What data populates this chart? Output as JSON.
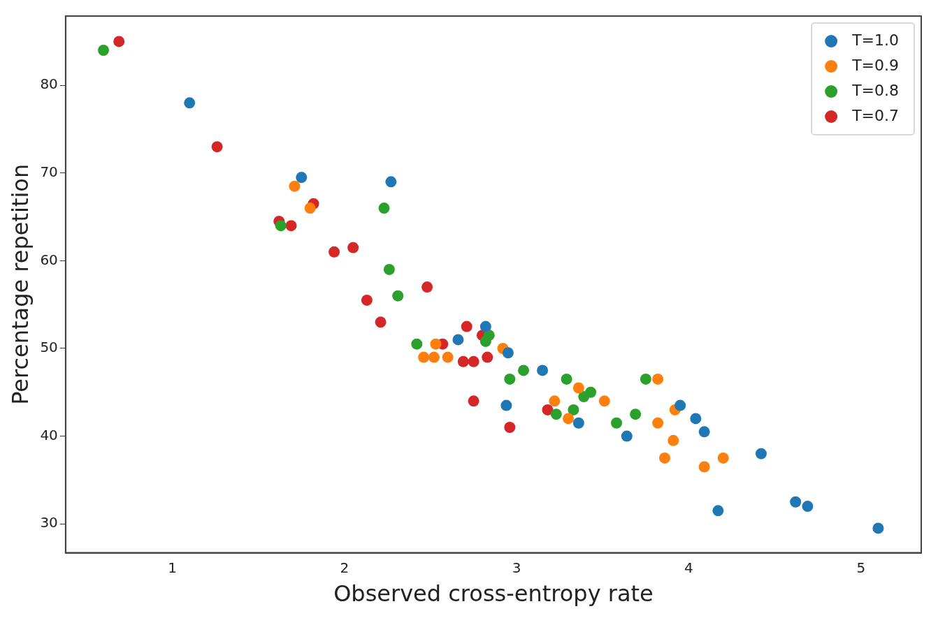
{
  "chart_data": {
    "type": "scatter",
    "xlabel": "Observed cross-entropy rate",
    "ylabel": "Percentage repetition",
    "xlim": [
      0.38,
      5.35
    ],
    "ylim": [
      26.7,
      87.9
    ],
    "xticks": [
      1,
      2,
      3,
      4,
      5
    ],
    "yticks": [
      30,
      40,
      50,
      60,
      70,
      80
    ],
    "grid": false,
    "legend": "top right",
    "marker": "circle",
    "series": [
      {
        "name": "T=1.0",
        "color": "#1f77b4",
        "x": [
          1.1,
          1.75,
          2.27,
          2.66,
          2.82,
          2.95,
          2.94,
          3.15,
          3.36,
          3.64,
          3.95,
          4.04,
          4.09,
          4.17,
          4.42,
          4.62,
          4.69,
          5.1
        ],
        "values": [
          78.0,
          69.5,
          69.0,
          51.0,
          52.5,
          49.5,
          43.5,
          47.5,
          41.5,
          40.0,
          43.5,
          42.0,
          40.5,
          31.5,
          38.0,
          32.5,
          32.0,
          29.5
        ]
      },
      {
        "name": "T=0.9",
        "color": "#ff7f0e",
        "x": [
          1.71,
          1.8,
          2.46,
          2.52,
          2.53,
          2.6,
          2.92,
          3.22,
          3.3,
          3.36,
          3.51,
          3.82,
          3.92,
          3.82,
          3.91,
          3.86,
          4.09,
          4.2
        ],
        "values": [
          68.5,
          66.0,
          49.0,
          49.0,
          50.5,
          49.0,
          50.0,
          44.0,
          42.0,
          45.5,
          44.0,
          46.5,
          43.0,
          41.5,
          39.5,
          37.5,
          36.5,
          37.5
        ]
      },
      {
        "name": "T=0.8",
        "color": "#2ca02c",
        "x": [
          0.6,
          1.63,
          2.23,
          2.26,
          2.31,
          2.42,
          2.84,
          2.82,
          3.04,
          2.96,
          3.29,
          3.39,
          3.43,
          3.33,
          3.23,
          3.58,
          3.69,
          3.75
        ],
        "values": [
          84.0,
          64.0,
          66.0,
          59.0,
          56.0,
          50.5,
          51.5,
          50.8,
          47.5,
          46.5,
          46.5,
          44.5,
          45.0,
          43.0,
          42.5,
          41.5,
          42.5,
          46.5
        ]
      },
      {
        "name": "T=0.7",
        "color": "#d62728",
        "x": [
          0.69,
          1.26,
          1.62,
          1.69,
          1.82,
          1.94,
          2.05,
          2.13,
          2.21,
          2.48,
          2.57,
          2.71,
          2.8,
          2.69,
          2.75,
          2.83,
          2.75,
          2.96,
          3.18
        ],
        "values": [
          85.0,
          73.0,
          64.5,
          64.0,
          66.5,
          61.0,
          61.5,
          55.5,
          53.0,
          57.0,
          50.5,
          52.5,
          51.5,
          48.5,
          48.5,
          49.0,
          44.0,
          41.0,
          43.0
        ]
      }
    ]
  }
}
